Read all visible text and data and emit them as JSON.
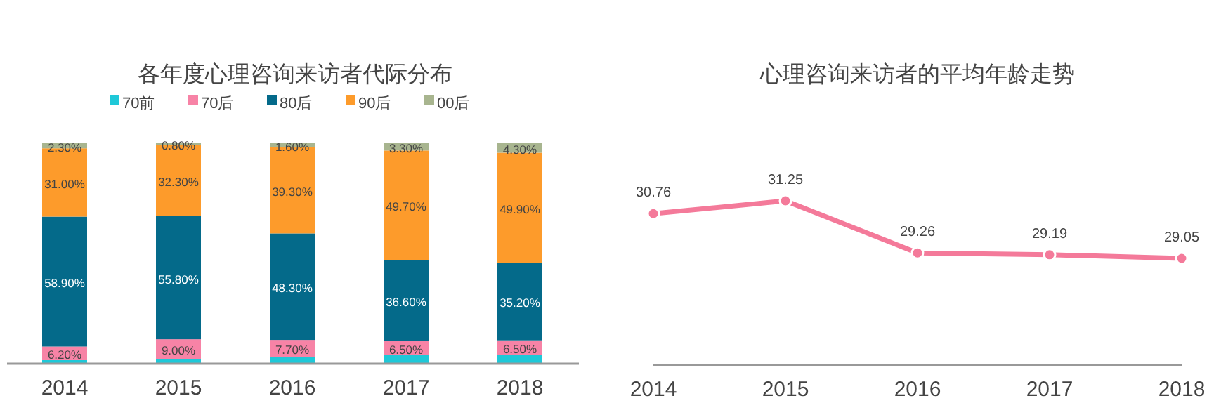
{
  "chart_data": [
    {
      "type": "bar",
      "title": "各年度心理咨询来访者代际分布",
      "categories": [
        "2014",
        "2015",
        "2016",
        "2017",
        "2018"
      ],
      "stacked": true,
      "ylim": [
        0,
        100
      ],
      "tick_labels": "x",
      "legend": "top",
      "series": [
        {
          "name": "70前",
          "color": "#1fc8d8",
          "values": [
            1.6,
            2.1,
            3.1,
            3.9,
            4.1
          ],
          "value_labels": [
            null,
            null,
            null,
            null,
            null
          ]
        },
        {
          "name": "70后",
          "color": "#f783a6",
          "values": [
            6.2,
            9.0,
            7.7,
            6.5,
            6.5
          ],
          "value_labels": [
            "6.20%",
            "9.00%",
            "7.70%",
            "6.50%",
            "6.50%"
          ]
        },
        {
          "name": "80后",
          "color": "#046a8a",
          "values": [
            58.9,
            55.8,
            48.3,
            36.6,
            35.2
          ],
          "value_labels": [
            "58.90%",
            "55.80%",
            "48.30%",
            "36.60%",
            "35.20%"
          ]
        },
        {
          "name": "90后",
          "color": "#fd9b2b",
          "values": [
            31.0,
            32.3,
            39.3,
            49.7,
            49.9
          ],
          "value_labels": [
            "31.00%",
            "32.30%",
            "39.30%",
            "49.70%",
            "49.90%"
          ]
        },
        {
          "name": "00后",
          "color": "#a8b58f",
          "values": [
            2.3,
            0.8,
            1.6,
            3.3,
            4.3
          ],
          "value_labels": [
            "2.30%",
            "0.80%",
            "1.60%",
            "3.30%",
            "4.30%"
          ]
        }
      ]
    },
    {
      "type": "line",
      "title": "心理咨询来访者的平均年龄走势",
      "categories": [
        "2014",
        "2015",
        "2016",
        "2017",
        "2018"
      ],
      "tick_labels": "x",
      "marker": "circle",
      "data_labels": true,
      "series": [
        {
          "color": "#f47a9a",
          "values": [
            30.76,
            31.25,
            29.26,
            29.19,
            29.05
          ]
        }
      ]
    }
  ]
}
